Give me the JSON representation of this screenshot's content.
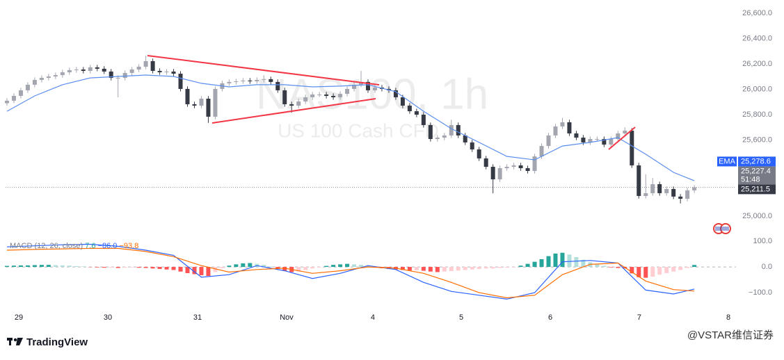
{
  "chart_data": [
    {
      "type": "candlestick",
      "title": "NAS100, 1h",
      "subtitle": "US 100 Cash CFD",
      "up_color": "#a3a6af",
      "down_color": "#363a45",
      "open": [
        25890,
        25910,
        25948,
        25992,
        26036,
        26074,
        26090,
        26101,
        26112,
        26134,
        26151,
        26156,
        26145,
        26173,
        26162,
        26140,
        26090,
        26090,
        26129,
        26156,
        26178,
        26222,
        26145,
        26134,
        26140,
        26123,
        26003,
        25882,
        25871,
        25926,
        25784,
        26003,
        26047,
        26058,
        26063,
        26069,
        26063,
        26074,
        26080,
        26058,
        25992,
        25882,
        25871,
        25904,
        25937,
        25959,
        25959,
        25948,
        25937,
        25964,
        26003,
        26036,
        26058,
        25992,
        26014,
        26003,
        25992,
        25937,
        25871,
        25827,
        25800,
        25718,
        25608,
        25619,
        25636,
        25718,
        25636,
        25581,
        25526,
        25455,
        25389,
        25290,
        25378,
        25389,
        25400,
        25378,
        25356,
        25471,
        25553,
        25636,
        25707,
        25740,
        25652,
        25619,
        25581,
        25608,
        25608,
        25564,
        25608,
        25652,
        25674,
        25400,
        25159,
        25181,
        25252,
        25181,
        25214,
        25154,
        25137,
        25203
      ],
      "high": [
        25930,
        25968,
        26012,
        26056,
        26094,
        26110,
        26121,
        26132,
        26154,
        26171,
        26176,
        26176,
        26193,
        26193,
        26182,
        26160,
        26110,
        26149,
        26176,
        26198,
        26265,
        26242,
        26165,
        26160,
        26160,
        26143,
        26023,
        25902,
        25946,
        25946,
        26023,
        26067,
        26078,
        26083,
        26089,
        26089,
        26094,
        26110,
        26100,
        26078,
        26012,
        25902,
        25924,
        25957,
        25979,
        25979,
        25979,
        25968,
        25984,
        26023,
        26056,
        26145,
        26078,
        26034,
        26034,
        26023,
        26012,
        25957,
        25891,
        25847,
        25820,
        25738,
        25639,
        25656,
        25760,
        25738,
        25656,
        25601,
        25546,
        25475,
        25409,
        25398,
        25409,
        25420,
        25420,
        25398,
        25491,
        25573,
        25656,
        25727,
        25775,
        25760,
        25672,
        25639,
        25628,
        25628,
        25628,
        25628,
        25672,
        25700,
        25694,
        25420,
        25330,
        25300,
        25272,
        25234,
        25234,
        25174,
        25223,
        25245
      ],
      "low": [
        25870,
        25890,
        25928,
        25972,
        26016,
        26054,
        26070,
        26081,
        26092,
        26114,
        26131,
        26125,
        26125,
        26142,
        26120,
        26070,
        25937,
        26070,
        26109,
        26136,
        26158,
        26125,
        26114,
        26114,
        26103,
        25983,
        25862,
        25851,
        25851,
        25735,
        25764,
        25983,
        26027,
        26038,
        26043,
        26043,
        26043,
        26054,
        26038,
        25972,
        25862,
        25815,
        25851,
        25884,
        25917,
        25939,
        25928,
        25917,
        25917,
        25944,
        25983,
        26016,
        25972,
        25972,
        25983,
        25972,
        25917,
        25851,
        25807,
        25780,
        25698,
        25588,
        25588,
        25599,
        25616,
        25616,
        25561,
        25506,
        25435,
        25369,
        25180,
        25270,
        25358,
        25369,
        25358,
        25336,
        25336,
        25451,
        25533,
        25616,
        25687,
        25632,
        25599,
        25561,
        25561,
        25588,
        25544,
        25544,
        25588,
        25632,
        25380,
        25139,
        25139,
        25161,
        25161,
        25161,
        25134,
        25100,
        25117,
        25183
      ],
      "close": [
        25910,
        25948,
        25992,
        26036,
        26074,
        26090,
        26101,
        26112,
        26134,
        26151,
        26156,
        26145,
        26173,
        26162,
        26140,
        26090,
        26090,
        26129,
        26156,
        26178,
        26222,
        26145,
        26134,
        26140,
        26123,
        26003,
        25882,
        25871,
        25926,
        25784,
        26003,
        26047,
        26058,
        26063,
        26069,
        26063,
        26074,
        26080,
        26058,
        25992,
        25882,
        25871,
        25904,
        25937,
        25959,
        25959,
        25948,
        25937,
        25964,
        26003,
        26036,
        26058,
        25992,
        26014,
        26003,
        25992,
        25937,
        25871,
        25827,
        25800,
        25718,
        25608,
        25619,
        25636,
        25718,
        25636,
        25581,
        25526,
        25455,
        25389,
        25290,
        25378,
        25389,
        25400,
        25378,
        25356,
        25471,
        25553,
        25636,
        25707,
        25740,
        25652,
        25619,
        25581,
        25608,
        25608,
        25564,
        25608,
        25652,
        25674,
        25400,
        25159,
        25181,
        25252,
        25181,
        25214,
        25154,
        25137,
        25203,
        25227.4
      ],
      "ema": {
        "name": "EMA",
        "color": "#5b8def",
        "x": [
          0,
          4,
          8,
          12,
          16,
          20,
          24,
          28,
          32,
          36,
          40,
          44,
          48,
          52,
          56,
          60,
          64,
          68,
          72,
          76,
          80,
          84,
          88,
          92,
          96,
          99
        ],
        "values": [
          25827,
          25948,
          26036,
          26090,
          26101,
          26112,
          26101,
          26047,
          26019,
          26036,
          26036,
          26019,
          26025,
          26036,
          25981,
          25827,
          25690,
          25581,
          25471,
          25444,
          25553,
          25581,
          25619,
          25488,
          25345,
          25278.6
        ]
      },
      "price_labels": {
        "ema": {
          "value": 25278.6,
          "label": "25,278.6",
          "color": "#2962ff"
        },
        "last": {
          "value": 25227.4,
          "label": "25,227.4",
          "countdown": "51:48",
          "color": "#787b86"
        },
        "close": {
          "value": 25211.5,
          "label": "25,211.5",
          "color": "#363a45"
        }
      },
      "xlim": [
        -0.2,
        105
      ],
      "xticks": [
        {
          "value": 1.7,
          "label": "29"
        },
        {
          "value": 14.53,
          "label": "30"
        },
        {
          "value": 27.45,
          "label": "31"
        },
        {
          "value": 40.28,
          "label": "Nov"
        },
        {
          "value": 52.7,
          "label": "4"
        },
        {
          "value": 65.43,
          "label": "5"
        },
        {
          "value": 78.25,
          "label": "6"
        },
        {
          "value": 91.07,
          "label": "7"
        },
        {
          "value": 103.9,
          "label": "8"
        }
      ],
      "ylim": [
        24841,
        26704
      ],
      "yticks": [
        {
          "value": 25000,
          "label": "25,000.0"
        },
        {
          "value": 25200,
          "label": "25,200.0"
        },
        {
          "value": 25400,
          "label": "25,400.0"
        },
        {
          "value": 25600,
          "label": "25,600.0"
        },
        {
          "value": 25800,
          "label": "25,800.0"
        },
        {
          "value": 26000,
          "label": "26,000.0"
        },
        {
          "value": 26200,
          "label": "26,200.0"
        },
        {
          "value": 26400,
          "label": "26,400.0"
        },
        {
          "value": 26600,
          "label": "26,600.0"
        }
      ],
      "grid": false
    },
    {
      "type": "macd",
      "legend": {
        "title": "MACD (12, 26, close)",
        "values": [
          {
            "value": 7.6,
            "label": "7.6",
            "color": "#26a69a"
          },
          {
            "value": -86.0,
            "label": "−86.0",
            "color": "#2962ff"
          },
          {
            "value": -93.8,
            "label": "−93.8",
            "color": "#ff6d00"
          }
        ]
      },
      "histogram": {
        "colors": {
          "up_grow": "#26a69a",
          "up_fall": "#b2dfdb",
          "down_grow": "#ff5252",
          "down_fall": "#ffcdd2"
        },
        "values": [
          4,
          5,
          6,
          6,
          7,
          8,
          8,
          7,
          6,
          5,
          3,
          2,
          -1,
          -2,
          -3,
          -3,
          -4,
          -3,
          -2,
          -3,
          -4,
          -6,
          -8,
          -10,
          -12,
          -18,
          -24,
          -28,
          -32,
          -35,
          -20,
          -5,
          5,
          10,
          14,
          15,
          12,
          8,
          2,
          -8,
          -16,
          -20,
          -18,
          -12,
          -6,
          -2,
          4,
          8,
          10,
          12,
          10,
          8,
          4,
          -2,
          -5,
          -8,
          -10,
          -12,
          -14,
          -13,
          -15,
          -18,
          -20,
          -18,
          -16,
          -14,
          -12,
          -10,
          -8,
          -6,
          -6,
          -4,
          -3,
          -2,
          5,
          12,
          20,
          30,
          42,
          52,
          55,
          48,
          38,
          28,
          18,
          10,
          4,
          -2,
          -4,
          -6,
          -25,
          -40,
          -42,
          -38,
          -30,
          -24,
          -18,
          -12,
          -4,
          7.6
        ]
      },
      "series": [
        {
          "name": "MACD",
          "color": "#2962ff",
          "x": [
            0,
            4,
            8,
            12,
            16,
            20,
            24,
            28,
            32,
            36,
            40,
            44,
            48,
            52,
            56,
            60,
            64,
            68,
            72,
            76,
            80,
            84,
            88,
            92,
            96,
            99
          ],
          "values": [
            78,
            82,
            86,
            88,
            80,
            65,
            45,
            -40,
            -30,
            5,
            -15,
            -45,
            -25,
            5,
            -10,
            -60,
            -95,
            -110,
            -125,
            -100,
            20,
            25,
            15,
            -90,
            -105,
            -86
          ]
        },
        {
          "name": "Signal",
          "color": "#ff6d00",
          "x": [
            0,
            4,
            8,
            12,
            16,
            20,
            24,
            28,
            32,
            36,
            40,
            44,
            48,
            52,
            56,
            60,
            64,
            68,
            72,
            76,
            80,
            84,
            88,
            92,
            96,
            99
          ],
          "values": [
            65,
            68,
            70,
            72,
            72,
            60,
            40,
            5,
            -20,
            -10,
            -5,
            -25,
            -15,
            0,
            -5,
            -25,
            -60,
            -100,
            -120,
            -110,
            -30,
            10,
            15,
            -55,
            -88,
            -93.8
          ]
        }
      ],
      "ylim": [
        -178,
        119
      ],
      "yticks": [
        {
          "value": -100,
          "label": "−100.0"
        },
        {
          "value": 0,
          "label": "0.0"
        },
        {
          "value": 100,
          "label": "100.0"
        }
      ]
    }
  ],
  "footer": {
    "brand": "TradingView",
    "watermark": "@VSTAR维信证券"
  }
}
